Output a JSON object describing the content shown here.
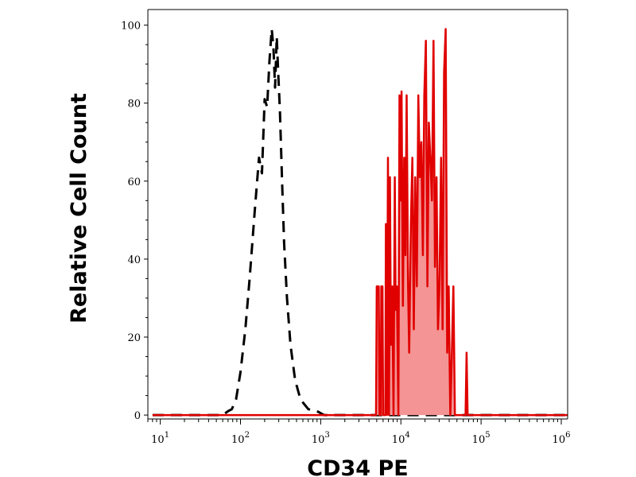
{
  "chart_data": {
    "type": "area",
    "xlabel": "CD34 PE",
    "ylabel": "Relative Cell Count",
    "x_scale": "log",
    "xlim": [
      7,
      1200000
    ],
    "ylim": [
      -1,
      104
    ],
    "grid": false,
    "x_ticks": [
      {
        "base": "10",
        "exp": "1",
        "value": 10
      },
      {
        "base": "10",
        "exp": "2",
        "value": 100
      },
      {
        "base": "10",
        "exp": "3",
        "value": 1000
      },
      {
        "base": "10",
        "exp": "4",
        "value": 10000
      },
      {
        "base": "10",
        "exp": "5",
        "value": 100000
      },
      {
        "base": "10",
        "exp": "6",
        "value": 1000000
      }
    ],
    "y_ticks": [
      "0",
      "20",
      "40",
      "60",
      "80",
      "100"
    ],
    "series": [
      {
        "style": "dashed",
        "color": "#000000",
        "filled": false,
        "points": [
          [
            8,
            0
          ],
          [
            20,
            0
          ],
          [
            40,
            0
          ],
          [
            60,
            0
          ],
          [
            70,
            1
          ],
          [
            78,
            1.5
          ],
          [
            88,
            4
          ],
          [
            100,
            11
          ],
          [
            115,
            22
          ],
          [
            130,
            35
          ],
          [
            150,
            52
          ],
          [
            170,
            66
          ],
          [
            185,
            62
          ],
          [
            200,
            81
          ],
          [
            215,
            79
          ],
          [
            230,
            91
          ],
          [
            245,
            99
          ],
          [
            258,
            94
          ],
          [
            270,
            84
          ],
          [
            283,
            97
          ],
          [
            295,
            88
          ],
          [
            310,
            78
          ],
          [
            330,
            60
          ],
          [
            350,
            44
          ],
          [
            380,
            30
          ],
          [
            420,
            18
          ],
          [
            480,
            9
          ],
          [
            560,
            4
          ],
          [
            700,
            1.5
          ],
          [
            900,
            1
          ],
          [
            1100,
            0
          ],
          [
            5000,
            0
          ],
          [
            100000,
            0
          ],
          [
            1200000,
            0
          ]
        ]
      },
      {
        "style": "solid",
        "color": "#e00000",
        "fill": "#f49494",
        "filled": true,
        "points": [
          [
            8,
            0
          ],
          [
            1000,
            0
          ],
          [
            4900,
            0
          ],
          [
            5000,
            33
          ],
          [
            5300,
            33
          ],
          [
            5400,
            0
          ],
          [
            5600,
            0
          ],
          [
            5700,
            33
          ],
          [
            5900,
            33
          ],
          [
            6000,
            0
          ],
          [
            6400,
            0
          ],
          [
            6500,
            49
          ],
          [
            6700,
            0
          ],
          [
            6900,
            66
          ],
          [
            7100,
            0
          ],
          [
            7300,
            61
          ],
          [
            7500,
            18
          ],
          [
            7800,
            33
          ],
          [
            8100,
            0
          ],
          [
            8400,
            61
          ],
          [
            8600,
            27
          ],
          [
            8900,
            33
          ],
          [
            9300,
            0
          ],
          [
            9600,
            82
          ],
          [
            9900,
            55
          ],
          [
            10200,
            83
          ],
          [
            10600,
            28
          ],
          [
            11000,
            66
          ],
          [
            11400,
            41
          ],
          [
            11800,
            82
          ],
          [
            12300,
            33
          ],
          [
            12700,
            16
          ],
          [
            13300,
            49
          ],
          [
            13900,
            66
          ],
          [
            14500,
            22
          ],
          [
            15100,
            61
          ],
          [
            15800,
            33
          ],
          [
            16500,
            82
          ],
          [
            17200,
            61
          ],
          [
            18000,
            70
          ],
          [
            18800,
            41
          ],
          [
            19600,
            82
          ],
          [
            20500,
            96
          ],
          [
            21400,
            33
          ],
          [
            22300,
            75
          ],
          [
            23300,
            66
          ],
          [
            24400,
            55
          ],
          [
            25500,
            96
          ],
          [
            26600,
            38
          ],
          [
            27800,
            61
          ],
          [
            29000,
            22
          ],
          [
            30300,
            33
          ],
          [
            31700,
            66
          ],
          [
            33100,
            22
          ],
          [
            34600,
            88
          ],
          [
            36200,
            99
          ],
          [
            37800,
            16
          ],
          [
            39500,
            33
          ],
          [
            41300,
            0
          ],
          [
            43200,
            16
          ],
          [
            45200,
            33
          ],
          [
            47200,
            0
          ],
          [
            60000,
            0
          ],
          [
            64000,
            0
          ],
          [
            66000,
            16
          ],
          [
            68000,
            0
          ],
          [
            200000,
            0
          ],
          [
            1200000,
            0
          ]
        ]
      }
    ]
  }
}
